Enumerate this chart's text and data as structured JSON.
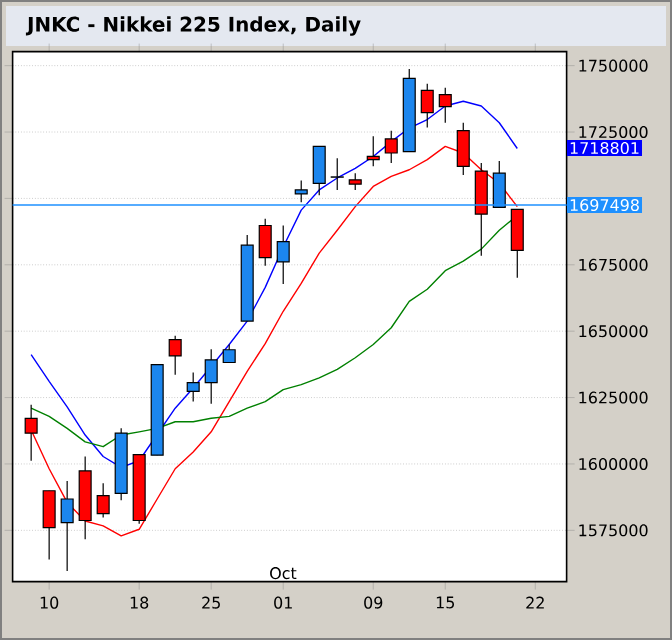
{
  "chart_data": {
    "type": "candlestick",
    "title": "JNKC - Nikkei 225 Index, Daily",
    "categories": [
      null,
      "10",
      null,
      null,
      null,
      null,
      "18",
      null,
      null,
      null,
      "25",
      null,
      null,
      null,
      "01",
      null,
      null,
      null,
      null,
      "09",
      null,
      null,
      null,
      "15",
      null,
      null,
      null,
      null,
      "22"
    ],
    "ohlc": [
      [
        1617200,
        1622300,
        1601200,
        1611600
      ],
      [
        1589900,
        1589900,
        1564000,
        1576000
      ],
      [
        1577900,
        1593600,
        1559700,
        1586800
      ],
      [
        1597400,
        1602800,
        1571600,
        1578700
      ],
      [
        1588100,
        1592700,
        1579800,
        1581300
      ],
      [
        1588900,
        1613400,
        1586300,
        1611600
      ],
      [
        1603500,
        1603500,
        1577500,
        1578700
      ],
      [
        1603300,
        1637400,
        1603300,
        1637400
      ],
      [
        1646800,
        1648300,
        1633600,
        1640700
      ],
      [
        1627300,
        1634400,
        1623500,
        1630600
      ],
      [
        1630600,
        1643200,
        1622700,
        1639200
      ],
      [
        1638200,
        1645000,
        1638200,
        1643000
      ],
      [
        1653800,
        1686200,
        1653800,
        1682400
      ],
      [
        1689800,
        1692300,
        1674600,
        1677700
      ],
      [
        1676100,
        1689800,
        1667800,
        1683700
      ],
      [
        1701700,
        1706700,
        1698600,
        1703200
      ],
      [
        1705700,
        1719600,
        1701200,
        1719600
      ],
      [
        1708000,
        1715100,
        1703200,
        1708100
      ],
      [
        1707000,
        1709500,
        1703200,
        1705400
      ],
      [
        1715800,
        1723400,
        1712100,
        1714600
      ],
      [
        1722400,
        1725500,
        1713300,
        1717100
      ],
      [
        1717600,
        1748700,
        1717600,
        1745200
      ],
      [
        1740700,
        1743200,
        1726700,
        1732300
      ],
      [
        1739100,
        1741700,
        1728500,
        1734600
      ],
      [
        1725500,
        1728500,
        1708800,
        1712100
      ],
      [
        1710300,
        1713300,
        1678400,
        1694100
      ],
      [
        1696600,
        1714100,
        1696600,
        1709500
      ],
      [
        1695900,
        1695900,
        1670100,
        1680400
      ],
      null
    ],
    "colors": [
      "#ff0000",
      "#ff0000",
      "#1c86ee",
      "#ff0000",
      "#ff0000",
      "#1c86ee",
      "#ff0000",
      "#1c86ee",
      "#ff0000",
      "#1c86ee",
      "#1c86ee",
      "#1c86ee",
      "#1c86ee",
      "#ff0000",
      "#1c86ee",
      "#1c86ee",
      "#1c86ee",
      "#1c86ee",
      "#ff0000",
      "#ff0000",
      "#ff0000",
      "#1c86ee",
      "#ff0000",
      "#ff0000",
      "#ff0000",
      "#ff0000",
      "#1c86ee",
      "#ff0000",
      null
    ],
    "series": [
      {
        "type": "line",
        "color": "#0000ff",
        "values": [
          1641200,
          1631100,
          1621500,
          1610900,
          1602800,
          1598700,
          1601200,
          null,
          1621000,
          1628600,
          1636700,
          1645000,
          1653800,
          1666500,
          1681700,
          1695600,
          1703200,
          1707700,
          1711300,
          1715800,
          1721400,
          1726500,
          1729700,
          1734800,
          1736600,
          1734800,
          1728500,
          1718800,
          null
        ]
      },
      {
        "type": "line",
        "color": "#ff0000",
        "values": [
          1612800,
          1598200,
          1585500,
          1578500,
          1576700,
          1572900,
          1575400,
          1586800,
          1598200,
          1604500,
          1612100,
          1623500,
          1634900,
          1645300,
          1657500,
          1668000,
          1679400,
          1688000,
          1696900,
          1704500,
          1708300,
          1710800,
          1714600,
          1719600,
          1717100,
          1710800,
          1705700,
          1696900,
          null
        ]
      },
      {
        "type": "line",
        "color": "#008000",
        "values": [
          1621000,
          1617900,
          1613400,
          1608300,
          1606500,
          1610900,
          1612100,
          1613400,
          1615900,
          1615900,
          1617200,
          1617900,
          1621000,
          1623500,
          1628000,
          1629900,
          1632400,
          1635600,
          1640000,
          1645000,
          1651300,
          1661200,
          1665800,
          1672800,
          1676400,
          1680900,
          1688000,
          1693600,
          null
        ]
      }
    ],
    "ylim": [
      1555700,
      1755300
    ],
    "yticks": [
      1575000,
      1600000,
      1625000,
      1650000,
      1675000,
      {
        "value": 1700000,
        "label": null
      },
      1725000,
      1750000
    ],
    "ref_lines": [
      {
        "axis": "y",
        "value": 1697498,
        "label": "1697498",
        "color": "#1e90ff"
      }
    ],
    "annotations": [
      "Oct",
      "1718801"
    ],
    "grid": "y",
    "marker": "none",
    "line_style": "solid"
  }
}
